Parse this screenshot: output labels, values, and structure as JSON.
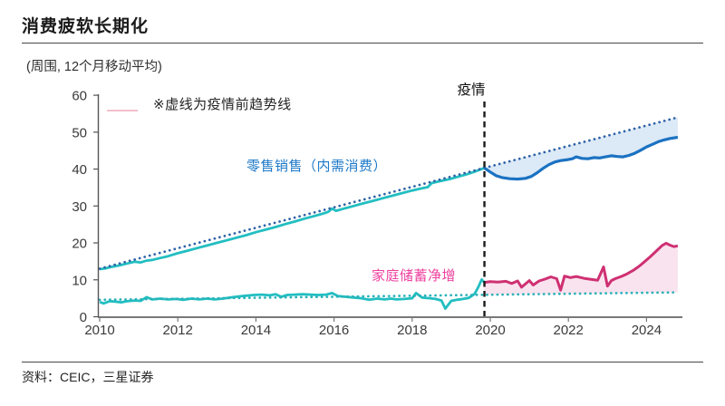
{
  "page": {
    "title": "消费疲软长期化",
    "source": "资料：CEIC，三星证券"
  },
  "chart": {
    "unit_label": "(周围, 12个月移动平均)",
    "note": "※虚线为疫情前趋势线",
    "pandemic_label": "疫情",
    "retail_label": "零售销售（内需消费）",
    "savings_label": "家庭储蓄净增"
  },
  "colors": {
    "teal_line": "#22BEC1",
    "teal_dotted": "#2AB1B8",
    "blue_line": "#1B72C2",
    "navy_dotted": "#2E62A6",
    "pink_line": "#CF3072",
    "blue_fill": "#DCE9F6",
    "pink_fill": "#F9E3EF",
    "retail_label_text": "#1E79C8",
    "savings_label_text": "#EE3F9E",
    "axis": "#787878",
    "pandemic_dash": "#1a1a1a",
    "note_key": "#F4BFCB"
  },
  "chart_data": {
    "type": "line",
    "title": "消费疲软长期化",
    "subtitle": "(周围, 12个月移动平均)",
    "xlabel": "",
    "ylabel": "",
    "xlim": [
      2009.95,
      2025.0
    ],
    "ylim": [
      0,
      60
    ],
    "x_ticks": [
      2010,
      2012,
      2014,
      2016,
      2018,
      2020,
      2022,
      2024
    ],
    "y_ticks": [
      0,
      10,
      20,
      30,
      40,
      50,
      60
    ],
    "grid": false,
    "legend_position": "none",
    "pandemic_line_x": 2019.85,
    "annotations": [
      "疫情",
      "※虚线为疫情前趋势线"
    ],
    "series": [
      {
        "id": "retail-actual-pre",
        "name": "零售销售（内需消费）疫情前实际",
        "dash": "solid",
        "color": "#22BEC1",
        "width": 2.8,
        "points": [
          [
            2010,
            12.9
          ],
          [
            2010.15,
            13.1
          ],
          [
            2010.3,
            13.5
          ],
          [
            2010.5,
            13.9
          ],
          [
            2010.7,
            14.4
          ],
          [
            2010.9,
            14.9
          ],
          [
            2011.05,
            14.7
          ],
          [
            2011.2,
            15.2
          ],
          [
            2011.35,
            15.4
          ],
          [
            2011.55,
            15.9
          ],
          [
            2011.75,
            16.4
          ],
          [
            2012,
            17.2
          ],
          [
            2012.25,
            17.9
          ],
          [
            2012.5,
            18.6
          ],
          [
            2012.75,
            19.3
          ],
          [
            2013,
            20
          ],
          [
            2013.25,
            20.7
          ],
          [
            2013.5,
            21.4
          ],
          [
            2013.75,
            22.1
          ],
          [
            2014,
            22.9
          ],
          [
            2014.25,
            23.6
          ],
          [
            2014.5,
            24.3
          ],
          [
            2014.75,
            25.1
          ],
          [
            2015,
            25.8
          ],
          [
            2015.25,
            26.6
          ],
          [
            2015.5,
            27.3
          ],
          [
            2015.7,
            27.9
          ],
          [
            2015.85,
            28.4
          ],
          [
            2015.95,
            29.3
          ],
          [
            2016.05,
            28.7
          ],
          [
            2016.25,
            29.3
          ],
          [
            2016.5,
            30
          ],
          [
            2016.75,
            30.7
          ],
          [
            2017,
            31.4
          ],
          [
            2017.25,
            32.1
          ],
          [
            2017.5,
            32.8
          ],
          [
            2017.75,
            33.5
          ],
          [
            2018,
            34.2
          ],
          [
            2018.2,
            34.7
          ],
          [
            2018.4,
            35.1
          ],
          [
            2018.5,
            36.2
          ],
          [
            2018.7,
            36.7
          ],
          [
            2019,
            37.4
          ],
          [
            2019.2,
            38
          ],
          [
            2019.4,
            38.6
          ],
          [
            2019.6,
            39.3
          ],
          [
            2019.85,
            40.3
          ]
        ]
      },
      {
        "id": "savings-actual-pre",
        "name": "家庭储蓄净增 疫情前实际",
        "dash": "solid",
        "color": "#22BEC1",
        "width": 2.8,
        "points": [
          [
            2010,
            4
          ],
          [
            2010.1,
            3.6
          ],
          [
            2010.25,
            4.2
          ],
          [
            2010.4,
            4.1
          ],
          [
            2010.55,
            3.9
          ],
          [
            2010.7,
            4.2
          ],
          [
            2010.9,
            4.4
          ],
          [
            2011.05,
            4.3
          ],
          [
            2011.2,
            5.3
          ],
          [
            2011.35,
            4.7
          ],
          [
            2011.55,
            4.9
          ],
          [
            2011.75,
            4.7
          ],
          [
            2011.95,
            4.8
          ],
          [
            2012.15,
            4.6
          ],
          [
            2012.35,
            4.9
          ],
          [
            2012.55,
            4.7
          ],
          [
            2012.75,
            4.9
          ],
          [
            2012.95,
            4.7
          ],
          [
            2013.15,
            4.9
          ],
          [
            2013.35,
            5.2
          ],
          [
            2013.55,
            5.5
          ],
          [
            2013.75,
            5.7
          ],
          [
            2013.95,
            5.9
          ],
          [
            2014.15,
            6
          ],
          [
            2014.35,
            5.8
          ],
          [
            2014.5,
            6.1
          ],
          [
            2014.65,
            5.4
          ],
          [
            2014.8,
            5.9
          ],
          [
            2015,
            6
          ],
          [
            2015.2,
            6.1
          ],
          [
            2015.4,
            6
          ],
          [
            2015.6,
            5.9
          ],
          [
            2015.8,
            6
          ],
          [
            2015.95,
            6.4
          ],
          [
            2016.1,
            5.6
          ],
          [
            2016.3,
            5.4
          ],
          [
            2016.5,
            5.2
          ],
          [
            2016.7,
            5
          ],
          [
            2016.9,
            4.6
          ],
          [
            2017.1,
            4.9
          ],
          [
            2017.3,
            4.7
          ],
          [
            2017.45,
            4.9
          ],
          [
            2017.6,
            4.7
          ],
          [
            2017.8,
            4.8
          ],
          [
            2018,
            5
          ],
          [
            2018.1,
            6.4
          ],
          [
            2018.25,
            5.2
          ],
          [
            2018.45,
            5
          ],
          [
            2018.6,
            4.8
          ],
          [
            2018.75,
            4.4
          ],
          [
            2018.85,
            2.2
          ],
          [
            2019,
            4.3
          ],
          [
            2019.15,
            4.6
          ],
          [
            2019.3,
            4.8
          ],
          [
            2019.45,
            5.1
          ],
          [
            2019.6,
            6.2
          ],
          [
            2019.7,
            8.2
          ],
          [
            2019.78,
            10.1
          ],
          [
            2019.85,
            9.3
          ]
        ]
      },
      {
        "id": "retail-trend",
        "name": "零售销售 疫情前趋势线",
        "dash": "dotted",
        "color": "#2E62A6",
        "width": 2.7,
        "points": [
          [
            2010,
            13
          ],
          [
            2019.85,
            40.3
          ],
          [
            2024.8,
            54
          ]
        ]
      },
      {
        "id": "savings-trend",
        "name": "家庭储蓄净增 疫情前趋势线",
        "dash": "dotted",
        "color": "#2AB1B8",
        "width": 2.7,
        "points": [
          [
            2010,
            4.6
          ],
          [
            2019.85,
            5.93
          ],
          [
            2024.8,
            6.6
          ]
        ]
      },
      {
        "id": "retail-actual-post",
        "name": "零售销售（内需消费）疫情后实际",
        "dash": "solid",
        "color": "#1B72C2",
        "width": 3.2,
        "points": [
          [
            2019.85,
            40.3
          ],
          [
            2020,
            39.2
          ],
          [
            2020.15,
            38.2
          ],
          [
            2020.3,
            37.7
          ],
          [
            2020.5,
            37.4
          ],
          [
            2020.7,
            37.3
          ],
          [
            2020.9,
            37.5
          ],
          [
            2021.05,
            38
          ],
          [
            2021.2,
            39
          ],
          [
            2021.35,
            40.2
          ],
          [
            2021.5,
            41.2
          ],
          [
            2021.65,
            41.9
          ],
          [
            2021.8,
            42.3
          ],
          [
            2021.95,
            42.5
          ],
          [
            2022.1,
            42.8
          ],
          [
            2022.2,
            43.3
          ],
          [
            2022.35,
            42.9
          ],
          [
            2022.5,
            42.8
          ],
          [
            2022.65,
            43.1
          ],
          [
            2022.8,
            43
          ],
          [
            2022.95,
            43.3
          ],
          [
            2023.1,
            43.6
          ],
          [
            2023.25,
            43.4
          ],
          [
            2023.4,
            43.3
          ],
          [
            2023.55,
            43.7
          ],
          [
            2023.7,
            44.3
          ],
          [
            2023.85,
            45.1
          ],
          [
            2024,
            46
          ],
          [
            2024.15,
            46.7
          ],
          [
            2024.3,
            47.4
          ],
          [
            2024.45,
            47.9
          ],
          [
            2024.6,
            48.3
          ],
          [
            2024.8,
            48.6
          ]
        ]
      },
      {
        "id": "savings-actual-post",
        "name": "家庭储蓄净增 疫情后实际",
        "dash": "solid",
        "color": "#CF3072",
        "width": 3,
        "points": [
          [
            2019.85,
            9.3
          ],
          [
            2020,
            9.5
          ],
          [
            2020.2,
            9.4
          ],
          [
            2020.4,
            9.6
          ],
          [
            2020.55,
            9
          ],
          [
            2020.7,
            9.7
          ],
          [
            2020.8,
            8
          ],
          [
            2021,
            9.8
          ],
          [
            2021.1,
            8.6
          ],
          [
            2021.25,
            9.7
          ],
          [
            2021.4,
            10.2
          ],
          [
            2021.55,
            10.8
          ],
          [
            2021.7,
            10.3
          ],
          [
            2021.8,
            7.2
          ],
          [
            2021.9,
            11
          ],
          [
            2022.05,
            10.6
          ],
          [
            2022.2,
            10.9
          ],
          [
            2022.4,
            10.4
          ],
          [
            2022.6,
            10.1
          ],
          [
            2022.75,
            9.9
          ],
          [
            2022.9,
            13.5
          ],
          [
            2023,
            8.3
          ],
          [
            2023.1,
            9.8
          ],
          [
            2023.2,
            10.3
          ],
          [
            2023.35,
            10.9
          ],
          [
            2023.5,
            11.6
          ],
          [
            2023.65,
            12.5
          ],
          [
            2023.8,
            13.6
          ],
          [
            2023.95,
            14.9
          ],
          [
            2024.1,
            16.3
          ],
          [
            2024.25,
            17.8
          ],
          [
            2024.4,
            19.3
          ],
          [
            2024.5,
            19.9
          ],
          [
            2024.6,
            19.4
          ],
          [
            2024.7,
            19
          ],
          [
            2024.8,
            19.2
          ]
        ]
      }
    ],
    "fills": [
      {
        "id": "retail-gap",
        "upper": "retail-trend",
        "lower": "retail-actual-post",
        "from": 2019.85,
        "color": "#DCE9F6"
      },
      {
        "id": "savings-gap",
        "upper": "savings-actual-post",
        "lower": "savings-trend",
        "from": 2019.85,
        "color": "#F9E3EF"
      }
    ]
  }
}
